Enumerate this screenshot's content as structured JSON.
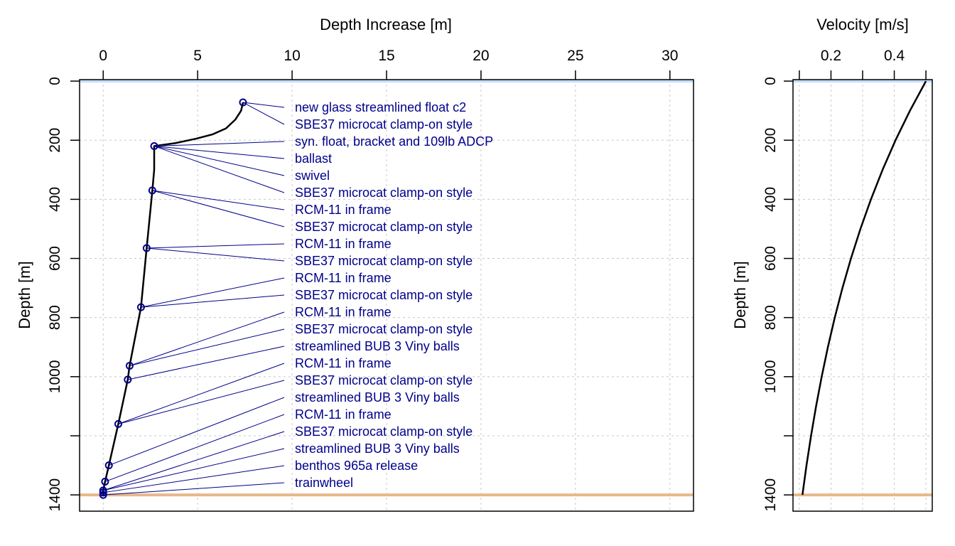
{
  "colors": {
    "surface_line": "#c6dcf7",
    "seabed_line": "#e6b88a",
    "instrument": "#00008b",
    "grid": "#c8c8c8",
    "profile": "#000000"
  },
  "chart_data": [
    {
      "type": "line",
      "xlabel": "Depth Increase [m]",
      "ylabel": "Depth [m]",
      "xlim": [
        -1.25,
        31.25
      ],
      "ylim": [
        1455,
        -5
      ],
      "x_axis_position": "top",
      "y_reversed": true,
      "xticks": [
        0,
        5,
        10,
        15,
        20,
        25,
        30
      ],
      "yticks": [
        0,
        200,
        400,
        600,
        800,
        1000,
        1200,
        1400
      ],
      "ytick_labels": [
        "0",
        "200",
        "400",
        "600",
        "800",
        "1000",
        "",
        "1400"
      ],
      "grid": true,
      "surface_depth": 0,
      "seabed_depth": 1400,
      "profile": {
        "x": [
          7.4,
          7.3,
          7.0,
          6.5,
          5.8,
          4.9,
          3.8,
          2.7,
          2.7,
          2.6,
          2.3,
          2.0,
          1.4,
          1.3,
          0.8,
          0.3,
          0.1,
          0.0,
          0.0
        ],
        "y": [
          72,
          100,
          130,
          160,
          180,
          195,
          210,
          220,
          300,
          370,
          565,
          765,
          963,
          1010,
          1160,
          1300,
          1355,
          1385,
          1400
        ]
      },
      "instruments": [
        {
          "label": "new glass streamlined float c2",
          "x": 7.4,
          "y": 72
        },
        {
          "label": "SBE37 microcat clamp-on style",
          "x": 7.4,
          "y": 72
        },
        {
          "label": "syn. float, bracket and 109lb ADCP",
          "x": 2.7,
          "y": 220
        },
        {
          "label": "ballast",
          "x": 2.7,
          "y": 220
        },
        {
          "label": "swivel",
          "x": 2.7,
          "y": 220
        },
        {
          "label": "SBE37 microcat clamp-on style",
          "x": 2.7,
          "y": 220
        },
        {
          "label": "RCM-11 in frame",
          "x": 2.6,
          "y": 370
        },
        {
          "label": "SBE37 microcat clamp-on style",
          "x": 2.6,
          "y": 370
        },
        {
          "label": "RCM-11 in frame",
          "x": 2.3,
          "y": 565
        },
        {
          "label": "SBE37 microcat clamp-on style",
          "x": 2.3,
          "y": 565
        },
        {
          "label": "RCM-11 in frame",
          "x": 2.0,
          "y": 765
        },
        {
          "label": "SBE37 microcat clamp-on style",
          "x": 2.0,
          "y": 765
        },
        {
          "label": "RCM-11 in frame",
          "x": 1.4,
          "y": 963
        },
        {
          "label": "SBE37 microcat clamp-on style",
          "x": 1.4,
          "y": 963
        },
        {
          "label": "streamlined BUB 3 Viny balls",
          "x": 1.3,
          "y": 1010
        },
        {
          "label": "RCM-11 in frame",
          "x": 0.8,
          "y": 1160
        },
        {
          "label": "SBE37 microcat clamp-on style",
          "x": 0.8,
          "y": 1160
        },
        {
          "label": "streamlined BUB 3 Viny balls",
          "x": 0.3,
          "y": 1300
        },
        {
          "label": "RCM-11 in frame",
          "x": 0.1,
          "y": 1355
        },
        {
          "label": "SBE37 microcat clamp-on style",
          "x": 0.0,
          "y": 1385
        },
        {
          "label": "streamlined BUB 3 Viny balls",
          "x": 0.0,
          "y": 1385
        },
        {
          "label": "benthos 965a release",
          "x": 0.0,
          "y": 1392
        },
        {
          "label": "trainwheel",
          "x": 0.0,
          "y": 1400
        }
      ]
    },
    {
      "type": "line",
      "xlabel": "Velocity [m/s]",
      "ylabel": "Depth [m]",
      "xlim": [
        0.08,
        0.52
      ],
      "ylim": [
        1455,
        -5
      ],
      "x_axis_position": "top",
      "y_reversed": true,
      "xticks": [
        0.1,
        0.2,
        0.3,
        0.4,
        0.5
      ],
      "xtick_labels": [
        "",
        "0.2",
        "",
        "0.4",
        ""
      ],
      "yticks": [
        0,
        200,
        400,
        600,
        800,
        1000,
        1200,
        1400
      ],
      "ytick_labels": [
        "0",
        "200",
        "400",
        "600",
        "800",
        "1000",
        "",
        "1400"
      ],
      "grid": true,
      "surface_depth": 0,
      "seabed_depth": 1400,
      "series": [
        {
          "x": [
            0.5,
            0.4495,
            0.404,
            0.363,
            0.3262,
            0.293,
            0.2631,
            0.2362,
            0.212,
            0.1902,
            0.1706,
            0.1529,
            0.137,
            0.1227,
            0.1098
          ],
          "y": [
            0,
            100,
            200,
            300,
            400,
            500,
            600,
            700,
            800,
            900,
            1000,
            1100,
            1200,
            1300,
            1400
          ]
        }
      ]
    }
  ]
}
